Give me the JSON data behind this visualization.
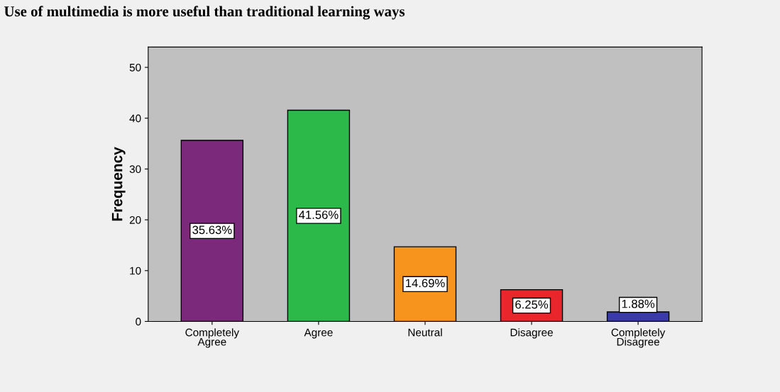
{
  "chart_data": {
    "type": "bar",
    "title": "Use of multimedia is more useful than traditional learning ways",
    "ylabel": "Frequency",
    "categories": [
      "Completely\nAgree",
      "Agree",
      "Neutral",
      "Disagree",
      "Completely\nDisagree"
    ],
    "values": [
      35.63,
      41.56,
      14.69,
      6.25,
      1.88
    ],
    "colors": [
      "#7b2a7b",
      "#2db84a",
      "#f7941d",
      "#e8262b",
      "#3a3aa8"
    ],
    "value_labels": [
      "35.63%",
      "41.56%",
      "14.69%",
      "6.25%",
      "1.88%"
    ],
    "ylim": [
      0,
      54
    ],
    "yticks": [
      0,
      10,
      20,
      30,
      40,
      50
    ],
    "grid": false,
    "legend": false
  }
}
